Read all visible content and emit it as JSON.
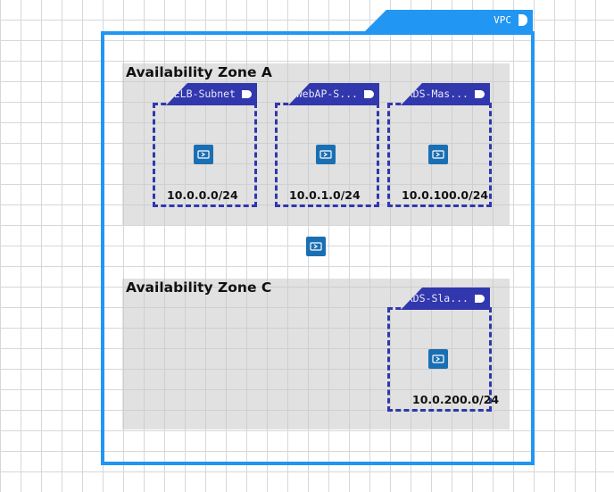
{
  "vpc": {
    "label": "VPC",
    "icon": "vpc-icon"
  },
  "zones": [
    {
      "title": "Availability Zone A"
    },
    {
      "title": "Availability Zone C"
    }
  ],
  "subnets": [
    {
      "label": "ELB-Subnet",
      "cidr": "10.0.0.0/24",
      "icon": "subnet-icon"
    },
    {
      "label": "WebAP-S...",
      "cidr": "10.0.1.0/24",
      "icon": "subnet-icon"
    },
    {
      "label": "RDS-Mas...",
      "cidr": "10.0.100.0/24",
      "icon": "subnet-icon"
    },
    {
      "label": "RDS-Sla...",
      "cidr": "10.0.200.0/24",
      "icon": "subnet-icon"
    }
  ],
  "colors": {
    "vpc": "#2196f3",
    "subnet": "#3137ad",
    "zone": "#d6d6d6",
    "node": "#1a6fb3"
  }
}
